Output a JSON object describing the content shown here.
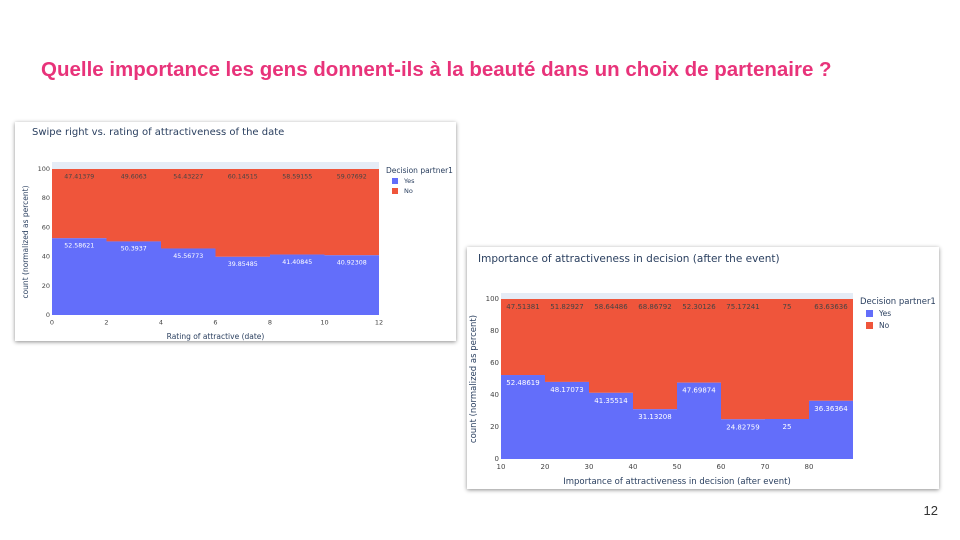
{
  "slide": {
    "title": "Quelle importance les gens donnent-ils à la beauté dans un choix de partenaire ?",
    "page_number": "12"
  },
  "colors": {
    "title": "#e8337a",
    "yes": "#636efa",
    "no": "#ef553b",
    "plot_header": "#e5ecf6"
  },
  "chart_data": [
    {
      "type": "bar",
      "stacked": true,
      "normalized": "percent",
      "title": "Swipe right vs. rating of attractiveness of the date",
      "xlabel": "Rating of attractive (date)",
      "ylabel": "count (normalized as percent)",
      "xlim": [
        0,
        12
      ],
      "ylim": [
        0,
        100
      ],
      "x_ticks": [
        "0",
        "2",
        "4",
        "6",
        "8",
        "10",
        "12"
      ],
      "y_ticks": [
        "0",
        "20",
        "40",
        "60",
        "80",
        "100"
      ],
      "legend_title": "Decision partner1",
      "legend_position": "top-right",
      "bins": [
        [
          0,
          2
        ],
        [
          2,
          4
        ],
        [
          4,
          6
        ],
        [
          6,
          8
        ],
        [
          8,
          10
        ],
        [
          10,
          12
        ]
      ],
      "series": [
        {
          "name": "Yes",
          "values": [
            52.58621,
            50.3937,
            45.56773,
            39.85485,
            41.40845,
            40.92308
          ],
          "labels": [
            "52.58621",
            "50.3937",
            "45.56773",
            "39.85485",
            "41.40845",
            "40.92308"
          ]
        },
        {
          "name": "No",
          "values": [
            47.41379,
            49.6063,
            54.43227,
            60.14515,
            58.59155,
            59.07692
          ],
          "labels": [
            "47.41379",
            "49.6063",
            "54.43227",
            "60.14515",
            "58.59155",
            "59.07692"
          ]
        }
      ]
    },
    {
      "type": "bar",
      "stacked": true,
      "normalized": "percent",
      "title": "Importance of attractiveness in decision (after the event)",
      "xlabel": "Importance of attractiveness in decision (after event)",
      "ylabel": "count (normalized as percent)",
      "xlim": [
        10,
        90
      ],
      "ylim": [
        0,
        100
      ],
      "x_ticks": [
        "10",
        "20",
        "30",
        "40",
        "50",
        "60",
        "70",
        "80"
      ],
      "y_ticks": [
        "0",
        "20",
        "40",
        "60",
        "80",
        "100"
      ],
      "legend_title": "Decision partner1",
      "legend_position": "top-right",
      "bins": [
        [
          10,
          20
        ],
        [
          20,
          30
        ],
        [
          30,
          40
        ],
        [
          40,
          50
        ],
        [
          50,
          60
        ],
        [
          60,
          70
        ],
        [
          70,
          80
        ],
        [
          80,
          90
        ]
      ],
      "series": [
        {
          "name": "Yes",
          "values": [
            52.48619,
            48.17073,
            41.35514,
            31.13208,
            47.69874,
            24.82759,
            25,
            36.36364
          ],
          "labels": [
            "52.48619",
            "48.17073",
            "41.35514",
            "31.13208",
            "47.69874",
            "24.82759",
            "25",
            "36.36364"
          ]
        },
        {
          "name": "No",
          "values": [
            47.51381,
            51.82927,
            58.64486,
            68.86792,
            52.30126,
            75.17241,
            75,
            63.63636
          ],
          "labels": [
            "47.51381",
            "51.82927",
            "58.64486",
            "68.86792",
            "52.30126",
            "75.17241",
            "75",
            "63.63636"
          ]
        }
      ]
    }
  ]
}
